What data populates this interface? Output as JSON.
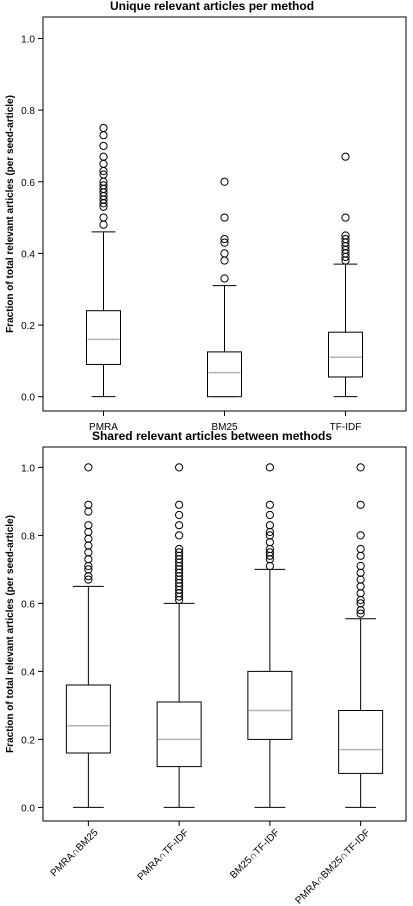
{
  "chart_data": [
    {
      "type": "boxplot",
      "title": "Unique relevant articles per method",
      "ylabel": "Fraction of total relevant articles (per seed-article)",
      "ylim": [
        -0.04,
        1.06
      ],
      "yticks": [
        "0.0",
        "0.2",
        "0.4",
        "0.6",
        "0.8",
        "1.0"
      ],
      "ytick_values": [
        0,
        0.2,
        0.4,
        0.6,
        0.8,
        1.0
      ],
      "tick_label_rotation": "horizontal",
      "categories": [
        "PMRA",
        "BM25",
        "TF-IDF"
      ],
      "boxes": [
        {
          "label": "PMRA",
          "whisker_low": 0.0,
          "q1": 0.09,
          "median": 0.16,
          "q3": 0.24,
          "whisker_high": 0.46,
          "outliers": [
            0.75,
            0.73,
            0.7,
            0.67,
            0.65,
            0.63,
            0.62,
            0.6,
            0.59,
            0.58,
            0.57,
            0.56,
            0.55,
            0.54,
            0.53,
            0.5,
            0.48
          ]
        },
        {
          "label": "BM25",
          "whisker_low": 0.0,
          "q1": 0.0,
          "median": 0.067,
          "q3": 0.125,
          "whisker_high": 0.31,
          "outliers": [
            0.6,
            0.5,
            0.44,
            0.43,
            0.4,
            0.38,
            0.33
          ]
        },
        {
          "label": "TF-IDF",
          "whisker_low": 0.0,
          "q1": 0.055,
          "median": 0.11,
          "q3": 0.18,
          "whisker_high": 0.37,
          "outliers": [
            0.67,
            0.5,
            0.45,
            0.44,
            0.43,
            0.42,
            0.41,
            0.4,
            0.39,
            0.38
          ]
        }
      ]
    },
    {
      "type": "boxplot",
      "title": "Shared relevant articles between methods",
      "ylabel": "Fraction of total relevant articles (per seed-article)",
      "ylim": [
        -0.04,
        1.06
      ],
      "yticks": [
        "0.0",
        "0.2",
        "0.4",
        "0.6",
        "0.8",
        "1.0"
      ],
      "ytick_values": [
        0,
        0.2,
        0.4,
        0.6,
        0.8,
        1.0
      ],
      "tick_label_rotation": "45deg",
      "categories": [
        "PMRA∩BM25",
        "PMRA∩TF-IDF",
        "BM25∩TF-IDF",
        "PMRA∩BM25∩TF-IDF"
      ],
      "boxes": [
        {
          "label": "PMRA∩BM25",
          "whisker_low": 0.0,
          "q1": 0.16,
          "median": 0.24,
          "q3": 0.36,
          "whisker_high": 0.65,
          "outliers": [
            1.0,
            0.89,
            0.87,
            0.83,
            0.81,
            0.79,
            0.77,
            0.75,
            0.73,
            0.71,
            0.7,
            0.68,
            0.67
          ]
        },
        {
          "label": "PMRA∩TF-IDF",
          "whisker_low": 0.0,
          "q1": 0.12,
          "median": 0.2,
          "q3": 0.31,
          "whisker_high": 0.6,
          "outliers": [
            1.0,
            0.89,
            0.86,
            0.83,
            0.8,
            0.76,
            0.75,
            0.74,
            0.73,
            0.72,
            0.71,
            0.7,
            0.69,
            0.68,
            0.67,
            0.66,
            0.65,
            0.64,
            0.63,
            0.62,
            0.61
          ]
        },
        {
          "label": "BM25∩TF-IDF",
          "whisker_low": 0.0,
          "q1": 0.2,
          "median": 0.285,
          "q3": 0.4,
          "whisker_high": 0.7,
          "outliers": [
            1.0,
            0.89,
            0.86,
            0.83,
            0.81,
            0.8,
            0.78,
            0.76,
            0.75,
            0.74,
            0.73,
            0.71
          ]
        },
        {
          "label": "PMRA∩BM25∩TF-IDF",
          "whisker_low": 0.0,
          "q1": 0.1,
          "median": 0.17,
          "q3": 0.285,
          "whisker_high": 0.555,
          "outliers": [
            1.0,
            0.89,
            0.8,
            0.76,
            0.74,
            0.71,
            0.69,
            0.67,
            0.65,
            0.63,
            0.61,
            0.6,
            0.58,
            0.57
          ]
        }
      ]
    }
  ]
}
